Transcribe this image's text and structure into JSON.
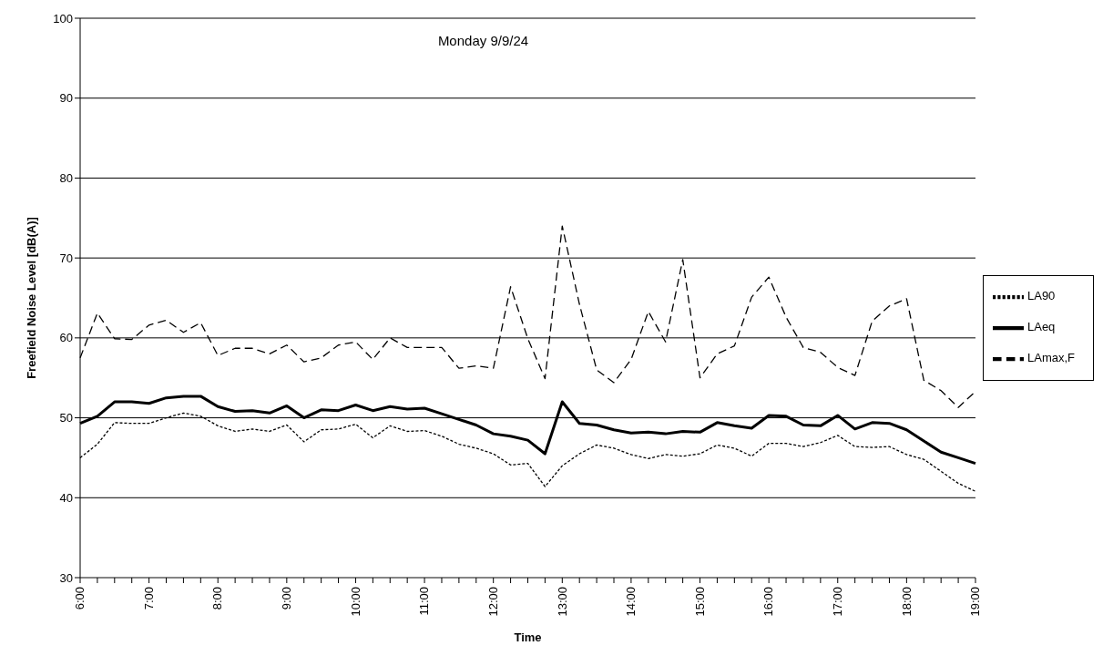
{
  "chart_data": {
    "type": "line",
    "title": "Monday 9/9/24",
    "xlabel": "Time",
    "ylabel": "Freefield Noise Level [dB(A)]",
    "categories": [
      "6:00",
      null,
      null,
      null,
      "7:00",
      null,
      null,
      null,
      "8:00",
      null,
      null,
      null,
      "9:00",
      null,
      null,
      null,
      "10:00",
      null,
      null,
      null,
      "11:00",
      null,
      null,
      null,
      "12:00",
      null,
      null,
      null,
      "13:00",
      null,
      null,
      null,
      "14:00",
      null,
      null,
      null,
      "15:00",
      null,
      null,
      null,
      "16:00",
      null,
      null,
      null,
      "17:00",
      null,
      null,
      null,
      "18:00",
      null,
      null,
      null,
      "19:00"
    ],
    "series": [
      {
        "name": "LAeq",
        "color": "#000000",
        "line_style": "solid",
        "values": [
          49.3,
          50.2,
          52.0,
          52.0,
          51.8,
          52.5,
          52.7,
          52.7,
          51.4,
          50.8,
          50.9,
          50.6,
          51.5,
          50.0,
          51.0,
          50.9,
          51.6,
          50.9,
          51.4,
          51.1,
          51.2,
          50.5,
          49.8,
          49.1,
          48.0,
          47.7,
          47.2,
          45.5,
          52.0,
          49.3,
          49.1,
          48.5,
          48.1,
          48.2,
          48.0,
          48.3,
          48.2,
          49.4,
          49.0,
          48.7,
          50.3,
          50.2,
          49.1,
          49.0,
          50.3,
          48.6,
          49.4,
          49.3,
          48.5,
          47.1,
          45.7,
          45.0,
          44.3
        ]
      },
      {
        "name": "LAmax,F",
        "color": "#000000",
        "line_style": "dashed",
        "values": [
          57.5,
          63.1,
          59.9,
          59.8,
          61.6,
          62.2,
          60.7,
          61.9,
          57.8,
          58.7,
          58.7,
          58.0,
          59.1,
          57.0,
          57.5,
          59.1,
          59.5,
          57.3,
          60.0,
          58.8,
          58.8,
          58.8,
          56.2,
          56.5,
          56.2,
          66.4,
          59.9,
          54.9,
          74.0,
          64.2,
          56.0,
          54.4,
          57.3,
          63.3,
          59.5,
          69.8,
          55.0,
          58.0,
          59.0,
          65.1,
          67.6,
          62.6,
          58.8,
          58.2,
          56.3,
          55.3,
          62.1,
          64.0,
          64.9,
          54.7,
          53.4,
          51.3,
          53.3
        ]
      },
      {
        "name": "LA90",
        "color": "#000000",
        "line_style": "dotted",
        "values": [
          45.0,
          46.7,
          49.4,
          49.3,
          49.3,
          50.0,
          50.6,
          50.2,
          49.0,
          48.3,
          48.6,
          48.3,
          49.1,
          47.0,
          48.5,
          48.6,
          49.2,
          47.5,
          49.0,
          48.3,
          48.4,
          47.7,
          46.7,
          46.2,
          45.5,
          44.1,
          44.3,
          41.4,
          44.0,
          45.5,
          46.6,
          46.2,
          45.4,
          44.9,
          45.4,
          45.2,
          45.5,
          46.6,
          46.2,
          45.2,
          46.8,
          46.8,
          46.4,
          46.9,
          47.8,
          46.4,
          46.3,
          46.4,
          45.4,
          44.8,
          43.3,
          41.8,
          40.8
        ]
      }
    ],
    "ylim": [
      30,
      100
    ],
    "yticks": [
      30,
      40,
      50,
      60,
      70,
      80,
      90,
      100
    ],
    "grid": "y",
    "legend": "right",
    "marker": "none"
  }
}
